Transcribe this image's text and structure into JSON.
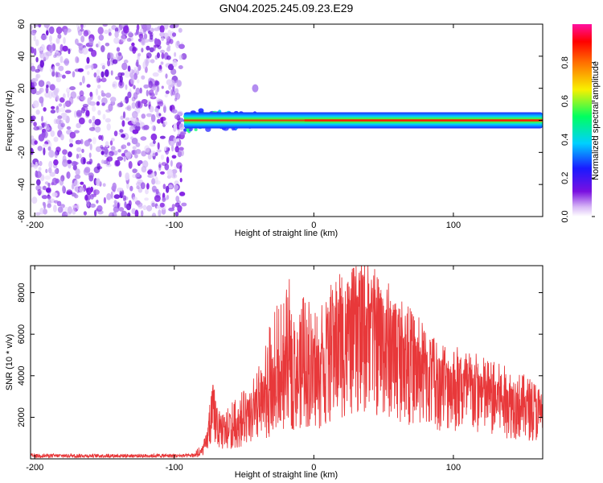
{
  "page": {
    "title": "GN04.2025.245.09.23.E29"
  },
  "chart_data": [
    {
      "type": "heatmap",
      "title": "GN04.2025.245.09.23.E29",
      "xlabel": "Height of straight line (km)",
      "ylabel": "Frequency (Hz)",
      "xlim": [
        -203,
        164
      ],
      "ylim": [
        -60,
        60
      ],
      "xticks": [
        -200,
        -100,
        0,
        100
      ],
      "yticks": [
        -60,
        -40,
        -20,
        0,
        20,
        40,
        60
      ],
      "colorbar": {
        "label": "Normalized spectral amplitude",
        "range": [
          0,
          1
        ],
        "ticks": [
          0.0,
          0.2,
          0.4,
          0.6,
          0.8
        ],
        "colormap": "rainbow (purple-blue-cyan-green-yellow-orange-red-magenta)"
      },
      "regions": [
        {
          "description": "broadband low-amplitude noise",
          "x_range": [
            -203,
            -93
          ],
          "frequency_range": [
            -60,
            60
          ],
          "amplitude_range": [
            0.0,
            0.1
          ]
        },
        {
          "description": "narrow band at 0 Hz",
          "x_range": [
            -93,
            164
          ],
          "frequency_range": [
            -5,
            5
          ],
          "amplitude_range": [
            0.2,
            0.95
          ]
        },
        {
          "description": "small feature",
          "x_range": [
            -45,
            -39
          ],
          "frequency_range": [
            16,
            24
          ],
          "amplitude_range": [
            0.05,
            0.15
          ]
        }
      ]
    },
    {
      "type": "line",
      "xlabel": "Height of straight line (km)",
      "ylabel": "SNR (10 * v/v)",
      "xlim": [
        -203,
        164
      ],
      "ylim": [
        0,
        9300
      ],
      "xticks": [
        -200,
        -100,
        0,
        100
      ],
      "yticks": [
        2000,
        4000,
        6000,
        8000
      ],
      "series_color": "#e8383a",
      "x": [
        -203,
        -190,
        -170,
        -150,
        -130,
        -110,
        -90,
        -82,
        -77,
        -72,
        -67,
        -62,
        -57,
        -52,
        -47,
        -42,
        -37,
        -32,
        -27,
        -22,
        -17,
        -12,
        -7,
        -2,
        3,
        8,
        13,
        18,
        23,
        28,
        33,
        38,
        43,
        48,
        53,
        58,
        63,
        68,
        73,
        78,
        83,
        88,
        93,
        98,
        103,
        108,
        113,
        118,
        123,
        128,
        133,
        138,
        143,
        148,
        153,
        158,
        164
      ],
      "y_mean": [
        150,
        150,
        150,
        150,
        150,
        150,
        150,
        200,
        800,
        2500,
        1200,
        1300,
        1500,
        1700,
        2000,
        2200,
        2500,
        3000,
        3400,
        3800,
        4000,
        4200,
        4400,
        4200,
        4000,
        4500,
        5000,
        5500,
        5800,
        6000,
        6200,
        6300,
        6000,
        5800,
        5600,
        5400,
        5100,
        4800,
        4600,
        4300,
        4100,
        3900,
        3800,
        3700,
        3600,
        3500,
        3400,
        3300,
        3200,
        3100,
        3000,
        2900,
        2800,
        2700,
        2600,
        2500,
        2200
      ],
      "y_peak": [
        300,
        300,
        300,
        300,
        300,
        300,
        300,
        600,
        1900,
        3600,
        2100,
        2500,
        3000,
        3200,
        3600,
        4300,
        4800,
        6500,
        8500,
        7600,
        8800,
        7600,
        8100,
        7800,
        7000,
        8500,
        8400,
        9000,
        8800,
        9200,
        9100,
        8400,
        8600,
        8000,
        7200,
        7200,
        6500,
        6100,
        5800,
        5400,
        5200,
        5000,
        4700,
        4500,
        4400,
        4300,
        4200,
        4100,
        4000,
        3900,
        3800,
        3700,
        3500,
        3300,
        3200,
        3100,
        2800
      ]
    }
  ]
}
